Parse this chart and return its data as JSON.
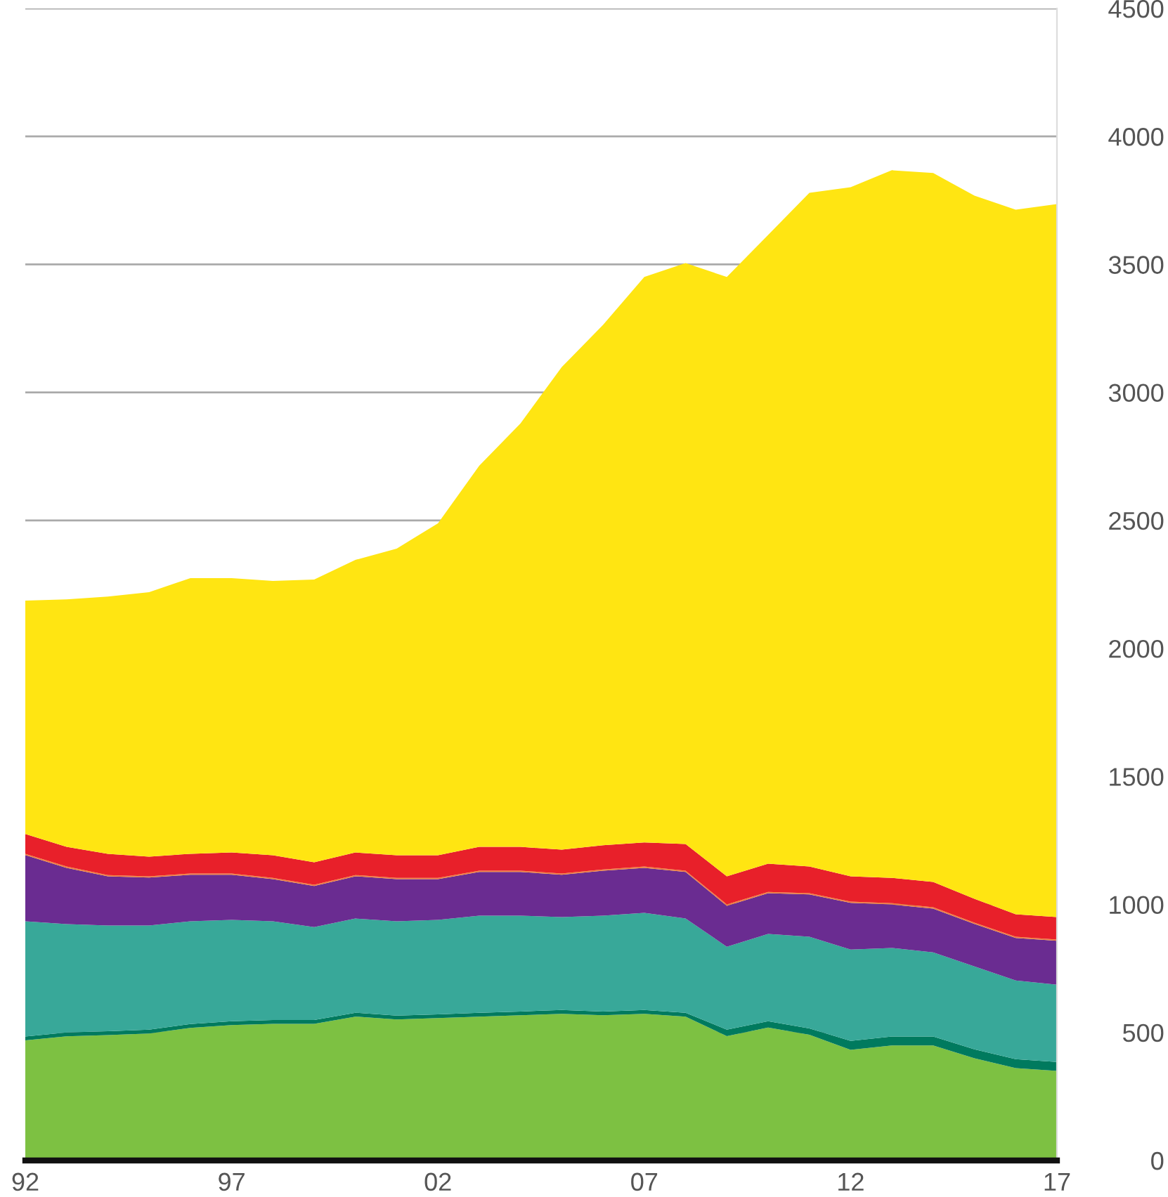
{
  "chart_data": {
    "type": "area",
    "stacked": true,
    "grid": "y",
    "legend": false,
    "x": [
      1992,
      1993,
      1994,
      1995,
      1996,
      1997,
      1998,
      1999,
      2000,
      2001,
      2002,
      2003,
      2004,
      2005,
      2006,
      2007,
      2008,
      2009,
      2010,
      2011,
      2012,
      2013,
      2014,
      2015,
      2016,
      2017
    ],
    "xlim": [
      1992,
      2017
    ],
    "xticks": [
      {
        "value": 1992,
        "label": "92"
      },
      {
        "value": 1997,
        "label": "97"
      },
      {
        "value": 2002,
        "label": "02"
      },
      {
        "value": 2007,
        "label": "07"
      },
      {
        "value": 2012,
        "label": "12"
      },
      {
        "value": 2017,
        "label": "17"
      }
    ],
    "ylim": [
      0,
      4500
    ],
    "yticks": [
      0,
      500,
      1000,
      1500,
      2000,
      2500,
      3000,
      3500,
      4000,
      4500
    ],
    "series": [
      {
        "color": "#7dc142",
        "values": [
          469,
          485,
          490,
          496,
          518,
          529,
          534,
          534,
          562,
          551,
          556,
          562,
          567,
          573,
          567,
          573,
          562,
          486,
          519,
          491,
          432,
          449,
          449,
          399,
          361,
          350
        ]
      },
      {
        "color": "#007a5e",
        "values": [
          15,
          15,
          15,
          15,
          15,
          15,
          15,
          15,
          15,
          15,
          15,
          15,
          15,
          15,
          15,
          15,
          15,
          25,
          25,
          25,
          35,
          35,
          35,
          35,
          35,
          35
        ]
      },
      {
        "color": "#38a899",
        "values": [
          450,
          423,
          413,
          407,
          401,
          396,
          385,
          363,
          368,
          368,
          369,
          379,
          374,
          363,
          374,
          379,
          368,
          324,
          341,
          358,
          357,
          346,
          329,
          324,
          307,
          302
        ]
      },
      {
        "color": "#6a2c91",
        "values": [
          259,
          220,
          192,
          187,
          182,
          176,
          165,
          160,
          165,
          165,
          159,
          171,
          171,
          165,
          176,
          176,
          182,
          160,
          159,
          165,
          182,
          170,
          171,
          166,
          166,
          171
        ]
      },
      {
        "color": "#f07f3c",
        "values": [
          5,
          5,
          5,
          5,
          5,
          5,
          5,
          5,
          5,
          5,
          5,
          5,
          5,
          5,
          5,
          5,
          5,
          5,
          5,
          5,
          5,
          5,
          5,
          5,
          5,
          5
        ]
      },
      {
        "color": "#e8202a",
        "values": [
          77,
          77,
          83,
          77,
          77,
          82,
          88,
          88,
          88,
          88,
          88,
          93,
          93,
          93,
          94,
          94,
          104,
          110,
          110,
          104,
          99,
          99,
          99,
          93,
          88,
          88
        ]
      },
      {
        "color": "#ffe512",
        "values": [
          912,
          967,
          1005,
          1033,
          1077,
          1072,
          1072,
          1104,
          1143,
          1198,
          1297,
          1489,
          1654,
          1885,
          2033,
          2209,
          2269,
          2341,
          2456,
          2632,
          2692,
          2764,
          2769,
          2747,
          2752,
          2785
        ]
      }
    ]
  }
}
